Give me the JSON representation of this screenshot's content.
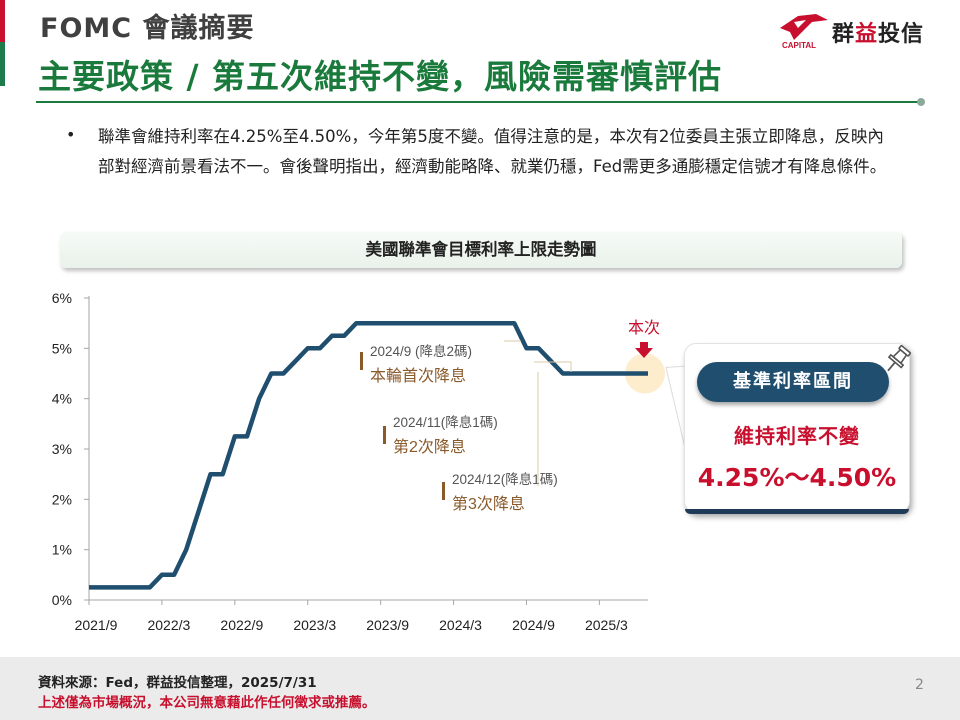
{
  "header": {
    "title_top": "FOMC 會議摘要",
    "title_main": "主要政策 / 第五次維持不變，風險需審慎評估"
  },
  "logo": {
    "text_part1": "群",
    "text_highlight": "益",
    "text_part2": "投信",
    "subtext": "CAPITAL"
  },
  "bullet": {
    "marker": "•",
    "text": "聯準會維持利率在4.25%至4.50%，今年第5度不變。值得注意的是，本次有2位委員主張立即降息，反映內部對經濟前景看法不一。會後聲明指出，經濟動能略降、就業仍穩，Fed需更多通膨穩定信號才有降息條件。"
  },
  "chart_banner": "美國聯準會目標利率上限走勢圖",
  "chart_data": {
    "type": "line",
    "title": "美國聯準會目標利率上限走勢圖",
    "xlabel": "",
    "ylabel": "",
    "x_ticks": [
      "2021/9",
      "2022/3",
      "2022/9",
      "2023/3",
      "2023/9",
      "2024/3",
      "2024/9",
      "2025/3"
    ],
    "y_ticks": [
      "0%",
      "1%",
      "2%",
      "3%",
      "4%",
      "5%",
      "6%"
    ],
    "ylim": [
      0,
      6
    ],
    "xlim": [
      "2021/9",
      "2025/7"
    ],
    "grid": false,
    "series": [
      {
        "name": "",
        "color": "#1f4e6e",
        "points": [
          [
            "2021/9",
            0.25
          ],
          [
            "2022/2",
            0.25
          ],
          [
            "2022/3",
            0.5
          ],
          [
            "2022/4",
            0.5
          ],
          [
            "2022/5",
            1.0
          ],
          [
            "2022/6",
            1.75
          ],
          [
            "2022/7",
            2.5
          ],
          [
            "2022/8",
            2.5
          ],
          [
            "2022/9",
            3.25
          ],
          [
            "2022/10",
            3.25
          ],
          [
            "2022/11",
            4.0
          ],
          [
            "2022/12",
            4.5
          ],
          [
            "2023/1",
            4.5
          ],
          [
            "2023/2",
            4.75
          ],
          [
            "2023/3",
            5.0
          ],
          [
            "2023/4",
            5.0
          ],
          [
            "2023/5",
            5.25
          ],
          [
            "2023/6",
            5.25
          ],
          [
            "2023/7",
            5.5
          ],
          [
            "2024/8",
            5.5
          ],
          [
            "2024/9",
            5.0
          ],
          [
            "2024/10",
            5.0
          ],
          [
            "2024/11",
            4.75
          ],
          [
            "2024/12",
            4.5
          ],
          [
            "2025/7",
            4.5
          ]
        ]
      }
    ],
    "annotations": [
      {
        "date_label": "2024/9 (降息2碼)",
        "desc": "本輪首次降息"
      },
      {
        "date_label": "2024/11(降息1碼)",
        "desc": "第2次降息"
      },
      {
        "date_label": "2024/12(降息1碼)",
        "desc": "第3次降息"
      }
    ],
    "current_marker": {
      "label": "本次",
      "date": "2025/7",
      "value": 4.5
    }
  },
  "callout": {
    "pill": "基準利率區間",
    "line1": "維持利率不變",
    "line2": "4.25%～4.50%"
  },
  "footer": {
    "source": "資料來源：Fed，群益投信整理，2025/7/31",
    "disclaimer": "上述僅為市場概況，本公司無意藉此作任何徵求或推薦。",
    "page_number": "2"
  },
  "colors": {
    "brand_green": "#1a7a3c",
    "brand_red": "#c8102e",
    "line_navy": "#1f4e6e",
    "annotation_brown": "#8b5a2b"
  }
}
